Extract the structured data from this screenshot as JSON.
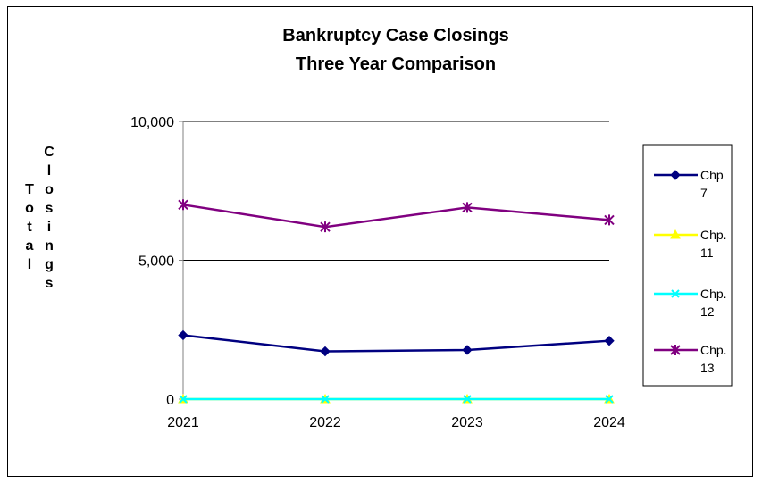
{
  "chart_data": {
    "type": "line",
    "title_lines": [
      "Bankruptcy Case Closings",
      "Three Year Comparison"
    ],
    "ylabel_words": [
      "Total",
      "Closings"
    ],
    "xlabel": "",
    "categories": [
      "2021",
      "2022",
      "2023",
      "2024"
    ],
    "ylim": [
      0,
      10000
    ],
    "yticks": [
      0,
      5000,
      10000
    ],
    "ytick_labels": [
      "0",
      "5,000",
      "10,000"
    ],
    "grid": true,
    "legend_position": "right",
    "series": [
      {
        "name_lines": [
          "Chp",
          "7"
        ],
        "color": "#000080",
        "marker": "diamond",
        "values": [
          2300,
          1720,
          1770,
          2100
        ]
      },
      {
        "name_lines": [
          "Chp.",
          "11"
        ],
        "color": "#ffff00",
        "marker": "triangle",
        "values": [
          0,
          0,
          0,
          0
        ]
      },
      {
        "name_lines": [
          "Chp.",
          "12"
        ],
        "color": "#00ffff",
        "marker": "x",
        "values": [
          0,
          0,
          0,
          0
        ]
      },
      {
        "name_lines": [
          "Chp.",
          "13"
        ],
        "color": "#800080",
        "marker": "star",
        "values": [
          7000,
          6200,
          6900,
          6450
        ]
      }
    ]
  }
}
